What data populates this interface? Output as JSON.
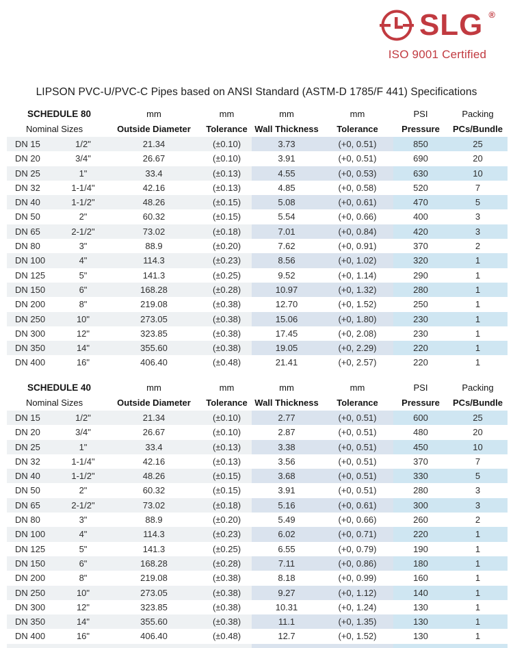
{
  "logo": {
    "brand": "SLG",
    "registered": "®",
    "certification": "ISO 9001 Certified",
    "color": "#c13a40",
    "icon": "clock-l-circle-icon"
  },
  "title": "LIPSON PVC-U/PVC-C Pipes based on ANSI Standard (ASTM-D 1785/F 441) Specifications",
  "tables": [
    {
      "schedule_label": "SCHEDULE 80",
      "header_row1": [
        "SCHEDULE 80",
        "mm",
        "mm",
        "mm",
        "mm",
        "PSI",
        "Packing"
      ],
      "header_row2": [
        "Nominal Sizes",
        "Outside Diameter",
        "Tolerance",
        "Wall Thickness",
        "Tolerance",
        "Pressure",
        "PCs/Bundle"
      ],
      "clipped_stripe": false,
      "rows": [
        [
          "DN 15",
          "1/2\"",
          "21.34",
          "(±0.10)",
          "3.73",
          "(+0, 0.51)",
          "850",
          "25"
        ],
        [
          "DN 20",
          "3/4\"",
          "26.67",
          "(±0.10)",
          "3.91",
          "(+0, 0.51)",
          "690",
          "20"
        ],
        [
          "DN 25",
          "1\"",
          "33.4",
          "(±0.13)",
          "4.55",
          "(+0, 0.53)",
          "630",
          "10"
        ],
        [
          "DN 32",
          "1-1/4\"",
          "42.16",
          "(±0.13)",
          "4.85",
          "(+0, 0.58)",
          "520",
          "7"
        ],
        [
          "DN 40",
          "1-1/2\"",
          "48.26",
          "(±0.15)",
          "5.08",
          "(+0, 0.61)",
          "470",
          "5"
        ],
        [
          "DN 50",
          "2\"",
          "60.32",
          "(±0.15)",
          "5.54",
          "(+0, 0.66)",
          "400",
          "3"
        ],
        [
          "DN 65",
          "2-1/2\"",
          "73.02",
          "(±0.18)",
          "7.01",
          "(+0, 0.84)",
          "420",
          "3"
        ],
        [
          "DN 80",
          "3\"",
          "88.9",
          "(±0.20)",
          "7.62",
          "(+0, 0.91)",
          "370",
          "2"
        ],
        [
          "DN 100",
          "4\"",
          "114.3",
          "(±0.23)",
          "8.56",
          "(+0, 1.02)",
          "320",
          "1"
        ],
        [
          "DN 125",
          "5\"",
          "141.3",
          "(±0.25)",
          "9.52",
          "(+0, 1.14)",
          "290",
          "1"
        ],
        [
          "DN 150",
          "6\"",
          "168.28",
          "(±0.28)",
          "10.97",
          "(+0, 1.32)",
          "280",
          "1"
        ],
        [
          "DN 200",
          "8\"",
          "219.08",
          "(±0.38)",
          "12.70",
          "(+0, 1.52)",
          "250",
          "1"
        ],
        [
          "DN 250",
          "10\"",
          "273.05",
          "(±0.38)",
          "15.06",
          "(+0, 1.80)",
          "230",
          "1"
        ],
        [
          "DN 300",
          "12\"",
          "323.85",
          "(±0.38)",
          "17.45",
          "(+0, 2.08)",
          "230",
          "1"
        ],
        [
          "DN 350",
          "14\"",
          "355.60",
          "(±0.38)",
          "19.05",
          "(+0, 2.29)",
          "220",
          "1"
        ],
        [
          "DN 400",
          "16\"",
          "406.40",
          "(±0.48)",
          "21.41",
          "(+0, 2.57)",
          "220",
          "1"
        ]
      ]
    },
    {
      "schedule_label": "SCHEDULE 40",
      "header_row1": [
        "SCHEDULE 40",
        "mm",
        "mm",
        "mm",
        "mm",
        "PSI",
        "Packing"
      ],
      "header_row2": [
        "Nominal Sizes",
        "Outside Diameter",
        "Tolerance",
        "Wall Thickness",
        "Tolerance",
        "Pressure",
        "PCs/Bundle"
      ],
      "clipped_stripe": true,
      "rows": [
        [
          "DN 15",
          "1/2\"",
          "21.34",
          "(±0.10)",
          "2.77",
          "(+0, 0.51)",
          "600",
          "25"
        ],
        [
          "DN 20",
          "3/4\"",
          "26.67",
          "(±0.10)",
          "2.87",
          "(+0, 0.51)",
          "480",
          "20"
        ],
        [
          "DN 25",
          "1\"",
          "33.4",
          "(±0.13)",
          "3.38",
          "(+0, 0.51)",
          "450",
          "10"
        ],
        [
          "DN 32",
          "1-1/4\"",
          "42.16",
          "(±0.13)",
          "3.56",
          "(+0, 0.51)",
          "370",
          "7"
        ],
        [
          "DN 40",
          "1-1/2\"",
          "48.26",
          "(±0.15)",
          "3.68",
          "(+0, 0.51)",
          "330",
          "5"
        ],
        [
          "DN 50",
          "2\"",
          "60.32",
          "(±0.15)",
          "3.91",
          "(+0, 0.51)",
          "280",
          "3"
        ],
        [
          "DN 65",
          "2-1/2\"",
          "73.02",
          "(±0.18)",
          "5.16",
          "(+0, 0.61)",
          "300",
          "3"
        ],
        [
          "DN 80",
          "3\"",
          "88.9",
          "(±0.20)",
          "5.49",
          "(+0, 0.66)",
          "260",
          "2"
        ],
        [
          "DN 100",
          "4\"",
          "114.3",
          "(±0.23)",
          "6.02",
          "(+0, 0.71)",
          "220",
          "1"
        ],
        [
          "DN 125",
          "5\"",
          "141.3",
          "(±0.25)",
          "6.55",
          "(+0, 0.79)",
          "190",
          "1"
        ],
        [
          "DN 150",
          "6\"",
          "168.28",
          "(±0.28)",
          "7.11",
          "(+0, 0.86)",
          "180",
          "1"
        ],
        [
          "DN 200",
          "8\"",
          "219.08",
          "(±0.38)",
          "8.18",
          "(+0, 0.99)",
          "160",
          "1"
        ],
        [
          "DN 250",
          "10\"",
          "273.05",
          "(±0.38)",
          "9.27",
          "(+0, 1.12)",
          "140",
          "1"
        ],
        [
          "DN 300",
          "12\"",
          "323.85",
          "(±0.38)",
          "10.31",
          "(+0, 1.24)",
          "130",
          "1"
        ],
        [
          "DN 350",
          "14\"",
          "355.60",
          "(±0.38)",
          "11.1",
          "(+0, 1.35)",
          "130",
          "1"
        ],
        [
          "DN 400",
          "16\"",
          "406.40",
          "(±0.48)",
          "12.7",
          "(+0, 1.52)",
          "130",
          "1"
        ]
      ]
    }
  ],
  "stripe_colors": {
    "nominal_outside_cols": "#eef1f3",
    "wall_thickness_cols": "#dae3ee",
    "pressure_packing_cols": "#cfe6f2"
  }
}
